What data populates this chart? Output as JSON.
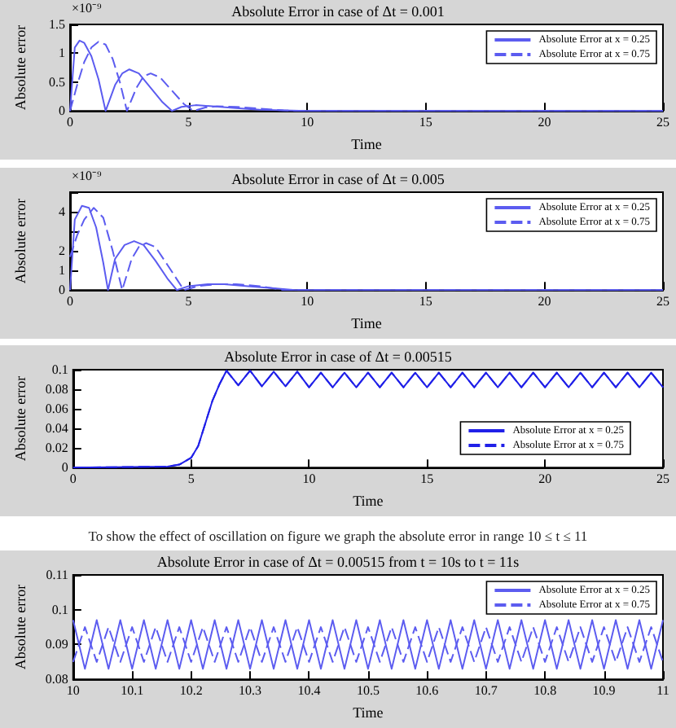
{
  "chart_data": [
    {
      "type": "line",
      "title": "Absolute Error in case of Δt = 0.001",
      "xlabel": "Time",
      "ylabel": "Absolute error",
      "annotations": [
        "×10⁻⁹"
      ],
      "xlim": [
        0,
        25
      ],
      "xticks": [
        0,
        5,
        10,
        15,
        20,
        25
      ],
      "ylim": [
        0,
        1.5
      ],
      "yticks": [
        0,
        0.5,
        1,
        1.5
      ],
      "grid": false,
      "legend": "top right",
      "marker": "none",
      "series": [
        {
          "name": "Absolute Error at x = 0.25",
          "color": "#5c5cf0",
          "line_style": "solid",
          "x": [
            0,
            0.2,
            0.4,
            0.6,
            0.9,
            1.2,
            1.5,
            1.9,
            2.2,
            2.5,
            2.9,
            3.4,
            3.9,
            4.3,
            4.7,
            5.3,
            6,
            7,
            8,
            9,
            10,
            25
          ],
          "values": [
            0,
            1.1,
            1.22,
            1.18,
            0.95,
            0.55,
            0,
            0.45,
            0.65,
            0.72,
            0.65,
            0.4,
            0.15,
            0,
            0.07,
            0.1,
            0.08,
            0.05,
            0.02,
            0.01,
            0,
            0
          ]
        },
        {
          "name": "Absolute Error at x = 0.75",
          "color": "#5c5cf0",
          "line_style": "dashed",
          "x": [
            0,
            0.3,
            0.6,
            0.9,
            1.2,
            1.5,
            1.8,
            2.1,
            2.4,
            2.8,
            3.1,
            3.4,
            3.8,
            4.3,
            4.8,
            5.2,
            5.7,
            6.2,
            7,
            8,
            9,
            9.5,
            25
          ],
          "values": [
            0,
            0.45,
            0.85,
            1.1,
            1.2,
            1.15,
            0.9,
            0.5,
            0,
            0.4,
            0.6,
            0.65,
            0.58,
            0.35,
            0.12,
            0,
            0.06,
            0.08,
            0.07,
            0.04,
            0.01,
            0,
            0
          ]
        }
      ]
    },
    {
      "type": "line",
      "title": "Absolute Error in case of Δt = 0.005",
      "xlabel": "Time",
      "ylabel": "Absolute error",
      "annotations": [
        "×10⁻⁹"
      ],
      "xlim": [
        0,
        25
      ],
      "xticks": [
        0,
        5,
        10,
        15,
        20,
        25
      ],
      "ylim": [
        0,
        5
      ],
      "yticks": [
        0,
        1,
        2,
        {
          "value": 3,
          "label": null
        },
        4,
        {
          "value": 5,
          "label": null
        }
      ],
      "grid": false,
      "legend": "top right",
      "marker": "none",
      "series": [
        {
          "name": "Absolute Error at x = 0.25",
          "color": "#5c5cf0",
          "line_style": "solid",
          "x": [
            0,
            0.2,
            0.5,
            0.8,
            1.1,
            1.4,
            1.6,
            1.9,
            2.3,
            2.7,
            3.1,
            3.6,
            4.1,
            4.5,
            5,
            5.8,
            6.5,
            7.5,
            8.5,
            9.5,
            25
          ],
          "values": [
            0,
            3.6,
            4.3,
            4.2,
            3.2,
            1.4,
            0,
            1.6,
            2.3,
            2.5,
            2.3,
            1.5,
            0.6,
            0,
            0.2,
            0.3,
            0.3,
            0.2,
            0.1,
            0,
            0
          ]
        },
        {
          "name": "Absolute Error at x = 0.75",
          "color": "#5c5cf0",
          "line_style": "dashed",
          "x": [
            0,
            0.3,
            0.6,
            1,
            1.4,
            1.8,
            2.2,
            2.6,
            2.9,
            3.2,
            3.6,
            4.1,
            4.8,
            5.4,
            6.2,
            7,
            8,
            9,
            9.5,
            25
          ],
          "values": [
            1.7,
            2.8,
            3.6,
            4.2,
            3.7,
            2,
            0,
            1.6,
            2.2,
            2.4,
            2.2,
            1.3,
            0,
            0.2,
            0.3,
            0.3,
            0.2,
            0,
            0,
            0
          ]
        }
      ]
    },
    {
      "type": "line",
      "title": "Absolute Error in case of Δt = 0.00515",
      "xlabel": "Time",
      "ylabel": "Absolute error",
      "xlim": [
        0,
        25
      ],
      "xticks": [
        0,
        5,
        10,
        15,
        20,
        25
      ],
      "ylim": [
        0,
        0.1
      ],
      "yticks": [
        0,
        0.02,
        0.04,
        0.06,
        0.08,
        0.1
      ],
      "grid": false,
      "legend": "bottom right",
      "marker": "none",
      "x": [
        0,
        4,
        4.5,
        5,
        5.3,
        5.6,
        5.9,
        6.2,
        6.5,
        7,
        7.5,
        8,
        8.5,
        9,
        9.5,
        10,
        10.5,
        11,
        11.5,
        12,
        12.5,
        13,
        13.5,
        14,
        14.5,
        15,
        15.5,
        16,
        16.5,
        17,
        17.5,
        18,
        18.5,
        19,
        19.5,
        20,
        20.5,
        21,
        21.5,
        22,
        22.5,
        23,
        23.5,
        24,
        24.5,
        25
      ],
      "series": [
        {
          "name": "Absolute Error at x = 0.25",
          "color": "#2020e8",
          "line_style": "solid",
          "values": [
            0,
            0.001,
            0.003,
            0.01,
            0.022,
            0.045,
            0.068,
            0.085,
            0.099,
            0.084,
            0.099,
            0.083,
            0.098,
            0.083,
            0.098,
            0.082,
            0.097,
            0.082,
            0.097,
            0.082,
            0.097,
            0.082,
            0.097,
            0.082,
            0.097,
            0.082,
            0.097,
            0.082,
            0.097,
            0.082,
            0.097,
            0.082,
            0.097,
            0.082,
            0.097,
            0.082,
            0.097,
            0.082,
            0.097,
            0.082,
            0.097,
            0.082,
            0.097,
            0.082,
            0.097,
            0.082
          ]
        },
        {
          "name": "Absolute Error at x = 0.75",
          "color": "#2020e8",
          "line_style": "dashed",
          "values": [
            0,
            0.001,
            0.003,
            0.01,
            0.022,
            0.045,
            0.068,
            0.085,
            0.099,
            0.084,
            0.099,
            0.083,
            0.098,
            0.083,
            0.098,
            0.082,
            0.097,
            0.082,
            0.097,
            0.082,
            0.097,
            0.082,
            0.097,
            0.082,
            0.097,
            0.082,
            0.097,
            0.082,
            0.097,
            0.082,
            0.097,
            0.082,
            0.097,
            0.082,
            0.097,
            0.082,
            0.097,
            0.082,
            0.097,
            0.082,
            0.097,
            0.082,
            0.097,
            0.082,
            0.097,
            0.082
          ]
        }
      ]
    },
    {
      "type": "line",
      "subtitle": "To show the effect of oscillation on figure we graph the absolute error in range 10 ≤ t ≤ 11",
      "title": "Absolute Error in case of Δt = 0.00515 from t = 10s to t = 11s",
      "xlabel": "Time",
      "ylabel": "Absolute error",
      "xlim": [
        10,
        11
      ],
      "xticks": [
        10,
        10.1,
        10.2,
        10.3,
        10.4,
        10.5,
        10.6,
        10.7,
        10.8,
        10.9,
        11
      ],
      "ylim": [
        0.08,
        0.11
      ],
      "yticks": [
        0.08,
        0.09,
        0.1,
        0.11
      ],
      "grid": false,
      "legend": "top right",
      "marker": "none",
      "x": [
        10,
        10.02,
        10.04,
        10.06,
        10.08,
        10.1,
        10.12,
        10.14,
        10.16,
        10.18,
        10.2,
        10.22,
        10.24,
        10.26,
        10.28,
        10.3,
        10.32,
        10.34,
        10.36,
        10.38,
        10.4,
        10.42,
        10.44,
        10.46,
        10.48,
        10.5,
        10.52,
        10.54,
        10.56,
        10.58,
        10.6,
        10.62,
        10.64,
        10.66,
        10.68,
        10.7,
        10.72,
        10.74,
        10.76,
        10.78,
        10.8,
        10.82,
        10.84,
        10.86,
        10.88,
        10.9,
        10.92,
        10.94,
        10.96,
        10.98,
        11
      ],
      "series": [
        {
          "name": "Absolute Error at x = 0.25",
          "color": "#5c5cf0",
          "line_style": "solid",
          "values": [
            0.097,
            0.083,
            0.097,
            0.083,
            0.097,
            0.083,
            0.097,
            0.083,
            0.097,
            0.083,
            0.097,
            0.083,
            0.097,
            0.083,
            0.097,
            0.083,
            0.097,
            0.083,
            0.097,
            0.083,
            0.097,
            0.083,
            0.097,
            0.083,
            0.097,
            0.083,
            0.097,
            0.083,
            0.097,
            0.083,
            0.097,
            0.083,
            0.097,
            0.083,
            0.097,
            0.083,
            0.097,
            0.083,
            0.097,
            0.083,
            0.097,
            0.083,
            0.097,
            0.083,
            0.097,
            0.083,
            0.097,
            0.083,
            0.097,
            0.083,
            0.097
          ]
        },
        {
          "name": "Absolute Error at x = 0.75",
          "color": "#5c5cf0",
          "line_style": "dashed",
          "values": [
            0.085,
            0.095,
            0.085,
            0.095,
            0.085,
            0.095,
            0.085,
            0.095,
            0.085,
            0.095,
            0.085,
            0.095,
            0.085,
            0.095,
            0.085,
            0.095,
            0.085,
            0.095,
            0.085,
            0.095,
            0.085,
            0.095,
            0.085,
            0.095,
            0.085,
            0.095,
            0.085,
            0.095,
            0.085,
            0.095,
            0.085,
            0.095,
            0.085,
            0.095,
            0.085,
            0.095,
            0.085,
            0.095,
            0.085,
            0.095,
            0.085,
            0.095,
            0.085,
            0.095,
            0.085,
            0.095,
            0.085,
            0.095,
            0.085,
            0.095,
            0.085
          ]
        }
      ]
    }
  ]
}
